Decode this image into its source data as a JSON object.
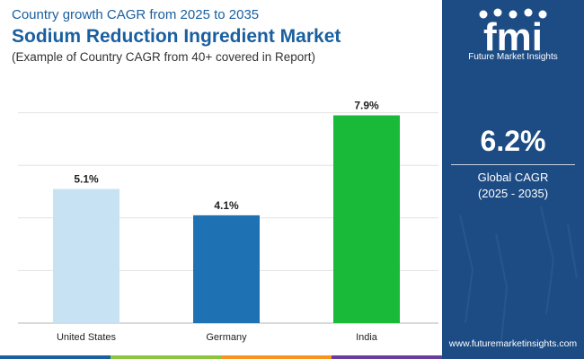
{
  "header": {
    "subtitle": "Country growth CAGR from 2025 to 2035",
    "title": "Sodium Reduction Ingredient Market",
    "note": "(Example of Country CAGR from 40+ covered in Report)"
  },
  "chart_data": {
    "type": "bar",
    "categories": [
      "United States",
      "Germany",
      "India"
    ],
    "values": [
      5.1,
      4.1,
      7.9
    ],
    "value_labels": [
      "5.1%",
      "4.1%",
      "7.9%"
    ],
    "colors": [
      "#c6e2f3",
      "#1e72b4",
      "#19b93a"
    ],
    "ylim": [
      0,
      10
    ],
    "grid": true
  },
  "panel": {
    "logo_text": "fmi",
    "logo_caption": "Future Market Insights",
    "cagr_value": "6.2%",
    "cagr_label": "Global CAGR",
    "cagr_period": "(2025 - 2035)",
    "url": "www.futuremarketinsights.com",
    "background": "#1d4c85"
  },
  "bottom_bar_colors": [
    "#1a5fa0",
    "#8cc63f",
    "#f7941d",
    "#6a3d9a"
  ]
}
